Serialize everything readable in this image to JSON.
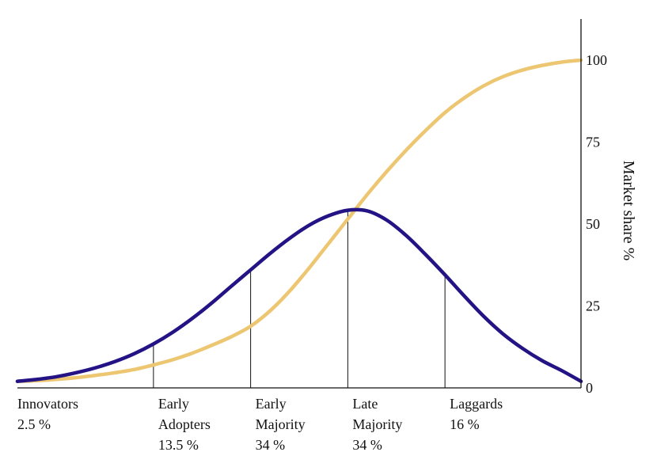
{
  "chart_data": {
    "type": "line",
    "title": "",
    "xlabel": "",
    "ylabel": "Market share %",
    "ylim": [
      0,
      112
    ],
    "y_axis_position": "right",
    "yticks": [
      0,
      25,
      50,
      75,
      100
    ],
    "xlim": [
      -3.4,
      2.4
    ],
    "grid": false,
    "legend": "none",
    "categories": [
      {
        "name": "Innovators",
        "share": "2.5 %",
        "boundary": -3.4
      },
      {
        "name_lines": [
          "Early",
          "Adopters"
        ],
        "share": "13.5 %",
        "boundary": -2.0
      },
      {
        "name_lines": [
          "Early",
          "Majority"
        ],
        "share": "34 %",
        "boundary": -1.0
      },
      {
        "name_lines": [
          "Late",
          "Majority"
        ],
        "share": "34 %",
        "boundary": 0.0
      },
      {
        "name": "Laggards",
        "share": "16 %",
        "boundary": 1.0
      }
    ],
    "series": [
      {
        "kind": "adoption-bell",
        "color": "#231385",
        "x": [
          -3.4,
          -3.2,
          -3.0,
          -2.8,
          -2.6,
          -2.4,
          -2.2,
          -2.0,
          -1.8,
          -1.6,
          -1.4,
          -1.2,
          -1.0,
          -0.8,
          -0.6,
          -0.4,
          -0.2,
          0.0,
          0.2,
          0.4,
          0.6,
          0.8,
          1.0,
          1.2,
          1.4,
          1.6,
          1.8,
          2.0,
          2.2,
          2.4
        ],
        "y": [
          2,
          2.6,
          3.4,
          4.6,
          6.1,
          8.0,
          10.4,
          13.4,
          17.0,
          21.2,
          25.9,
          31.0,
          36.0,
          41.0,
          45.6,
          49.6,
          52.5,
          54.2,
          54.0,
          51.2,
          46.5,
          40.7,
          34.5,
          28.0,
          21.8,
          16.4,
          12.0,
          8.3,
          5.3,
          2.0
        ]
      },
      {
        "kind": "market-share-s-curve",
        "color": "#EDC672",
        "x": [
          -3.4,
          -3.2,
          -3.0,
          -2.8,
          -2.6,
          -2.4,
          -2.2,
          -2.0,
          -1.8,
          -1.6,
          -1.4,
          -1.2,
          -1.0,
          -0.8,
          -0.6,
          -0.4,
          -0.2,
          0.0,
          0.2,
          0.4,
          0.6,
          0.8,
          1.0,
          1.2,
          1.4,
          1.6,
          1.8,
          2.0,
          2.2,
          2.4
        ],
        "y": [
          2,
          2.2,
          2.6,
          3.1,
          3.8,
          4.6,
          5.6,
          7.0,
          8.6,
          10.6,
          13.0,
          15.6,
          18.8,
          23.5,
          29.5,
          36.5,
          44.0,
          51.5,
          59.0,
          66.0,
          72.5,
          78.5,
          84.0,
          88.5,
          92.2,
          95.0,
          97.0,
          98.4,
          99.4,
          100
        ]
      }
    ]
  }
}
